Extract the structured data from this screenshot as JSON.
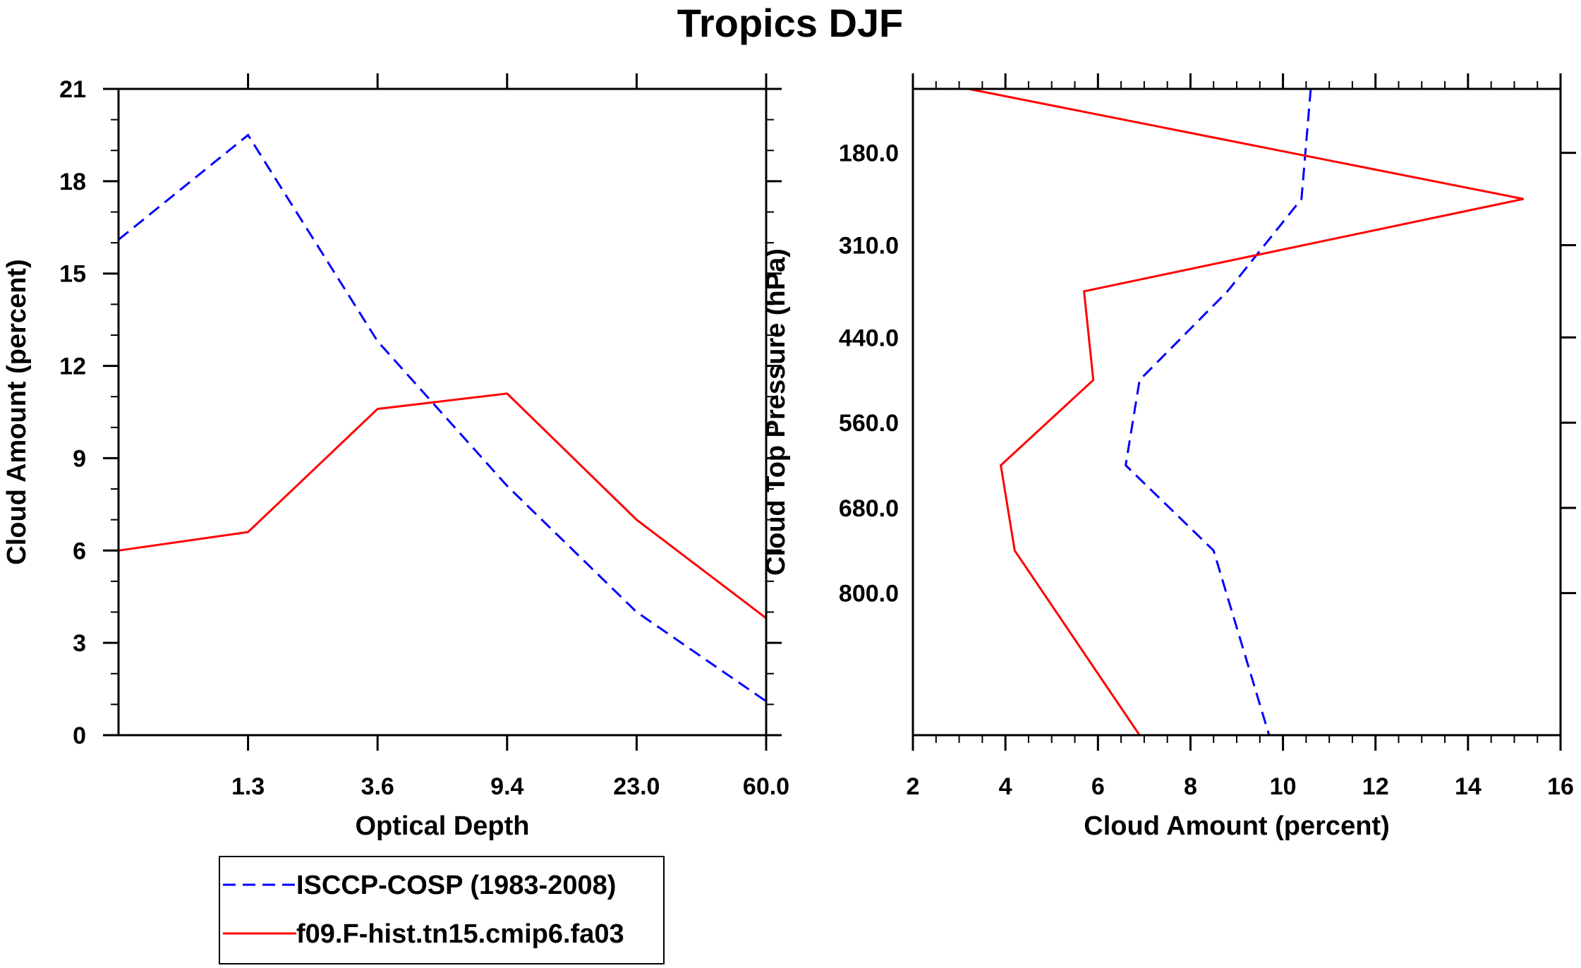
{
  "figure": {
    "title": "Tropics DJF"
  },
  "chart_data": [
    {
      "type": "line",
      "x_scale": "category",
      "xlabel": "Optical Depth",
      "ylabel": "Cloud Amount (percent)",
      "xticks": [
        "1.3",
        "3.6",
        "9.4",
        "23.0",
        "60.0"
      ],
      "ylim": [
        0,
        21
      ],
      "yticks": [
        "0",
        "3",
        "6",
        "9",
        "12",
        "15",
        "18",
        "21"
      ],
      "x": [
        0,
        1,
        2,
        3,
        4,
        5
      ],
      "series": [
        {
          "name": "ISCCP-COSP (1983-2008)",
          "color": "#0000ff",
          "dashed": true,
          "values": [
            16.1,
            19.5,
            12.8,
            8.1,
            4.0,
            1.1
          ]
        },
        {
          "name": "f09.F-hist.tn15.cmip6.fa03",
          "color": "#ff0000",
          "dashed": false,
          "values": [
            6.0,
            6.6,
            10.6,
            11.1,
            7.0,
            3.8
          ]
        }
      ]
    },
    {
      "type": "line",
      "orientation": "vertical-profile",
      "xlabel": "Cloud Amount (percent)",
      "ylabel": "Cloud Top Pressure (hPa)",
      "xlim": [
        2,
        16
      ],
      "xticks": [
        "2",
        "4",
        "6",
        "8",
        "10",
        "12",
        "14",
        "16"
      ],
      "ylim": [
        90,
        1000
      ],
      "yticks": [
        "180.0",
        "310.0",
        "440.0",
        "560.0",
        "680.0",
        "800.0"
      ],
      "pressure": [
        90,
        245,
        375,
        500,
        620,
        740,
        1000
      ],
      "series": [
        {
          "name": "ISCCP-COSP (1983-2008)",
          "color": "#0000ff",
          "dashed": true,
          "values": [
            10.6,
            10.4,
            8.8,
            6.9,
            6.6,
            8.5,
            9.7
          ]
        },
        {
          "name": "f09.F-hist.tn15.cmip6.fa03",
          "color": "#ff0000",
          "dashed": false,
          "values": [
            3.2,
            15.2,
            5.7,
            5.9,
            3.9,
            4.2,
            6.9
          ]
        }
      ]
    }
  ],
  "legend": {
    "items": [
      {
        "label": "ISCCP-COSP (1983-2008)",
        "color": "#0000ff",
        "dashed": true
      },
      {
        "label": "f09.F-hist.tn15.cmip6.fa03",
        "color": "#ff0000",
        "dashed": false
      }
    ]
  }
}
